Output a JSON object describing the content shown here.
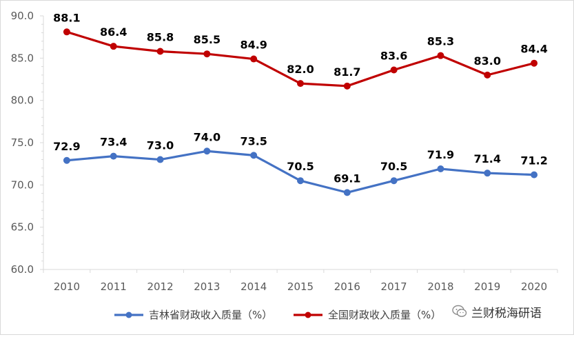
{
  "chart_data": {
    "type": "line",
    "title": "",
    "xlabel": "",
    "ylabel": "",
    "categories": [
      "2010",
      "2011",
      "2012",
      "2013",
      "2014",
      "2015",
      "2016",
      "2017",
      "2018",
      "2019",
      "2020"
    ],
    "ylim": [
      60.0,
      90.0
    ],
    "yticks": [
      "90.0",
      "85.0",
      "80.0",
      "75.0",
      "70.0",
      "65.0",
      "60.0"
    ],
    "grid": false,
    "legend_position": "bottom",
    "series": [
      {
        "name": "吉林省财政收入质量（%）",
        "color": "#4472C4",
        "values": [
          72.9,
          73.4,
          73.0,
          74.0,
          73.5,
          70.5,
          69.1,
          70.5,
          71.9,
          71.4,
          71.2
        ],
        "labels": [
          "72.9",
          "73.4",
          "73.0",
          "74.0",
          "73.5",
          "70.5",
          "69.1",
          "70.5",
          "71.9",
          "71.4",
          "71.2"
        ]
      },
      {
        "name": "全国财政收入质量（%）",
        "color": "#C00000",
        "values": [
          88.1,
          86.4,
          85.8,
          85.5,
          84.9,
          82.0,
          81.7,
          83.6,
          85.3,
          83.0,
          84.4
        ],
        "labels": [
          "88.1",
          "86.4",
          "85.8",
          "85.5",
          "84.9",
          "82.0",
          "81.7",
          "83.6",
          "85.3",
          "83.0",
          "84.4"
        ]
      }
    ]
  },
  "watermark": {
    "text": "兰财税海研语",
    "icon": "wechat-icon"
  }
}
